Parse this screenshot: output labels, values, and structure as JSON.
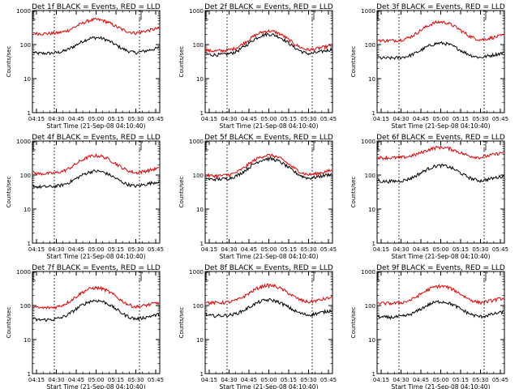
{
  "chart_data": [
    {
      "type": "line",
      "title": "Det 1f BLACK = Events, RED = LLD",
      "xlabel": "Start Time (21-Sep-08 04:10:40)",
      "ylabel": "Counts/sec",
      "xticks": [
        "04:15",
        "04:30",
        "04:45",
        "05:00",
        "05:15",
        "05:30",
        "05:45"
      ],
      "yticks": [
        "1",
        "10",
        "100",
        "1000"
      ],
      "ylim": [
        1,
        1000
      ],
      "yscale": "log",
      "series": [
        {
          "color": "#000000",
          "base": 55,
          "peak": 160
        },
        {
          "color": "#e00000",
          "base": 210,
          "peak": 540
        }
      ]
    },
    {
      "type": "line",
      "title": "Det 2f BLACK = Events, RED = LLD",
      "xlabel": "Start Time (21-Sep-08 04:10:40)",
      "ylabel": "Counts/sec",
      "xticks": [
        "04:15",
        "04:30",
        "04:45",
        "05:00",
        "05:15",
        "05:30",
        "05:45"
      ],
      "yticks": [
        "1",
        "10",
        "100",
        "1000"
      ],
      "ylim": [
        1,
        1000
      ],
      "yscale": "log",
      "series": [
        {
          "color": "#000000",
          "base": 50,
          "peak": 200
        },
        {
          "color": "#e00000",
          "base": 65,
          "peak": 250
        }
      ]
    },
    {
      "type": "line",
      "title": "Det 3f BLACK = Events, RED = LLD",
      "xlabel": "Start Time (21-Sep-08 04:10:40)",
      "ylabel": "Counts/sec",
      "xticks": [
        "04:15",
        "04:30",
        "04:45",
        "05:00",
        "05:15",
        "05:30",
        "05:45"
      ],
      "yticks": [
        "1",
        "10",
        "100",
        "1000"
      ],
      "ylim": [
        1,
        1000
      ],
      "yscale": "log",
      "series": [
        {
          "color": "#000000",
          "base": 40,
          "peak": 110
        },
        {
          "color": "#e00000",
          "base": 130,
          "peak": 460
        }
      ]
    },
    {
      "type": "line",
      "title": "Det 4f BLACK = Events, RED = LLD",
      "xlabel": "Start Time (21-Sep-08 04:10:40)",
      "ylabel": "Counts/sec",
      "xticks": [
        "04:15",
        "04:30",
        "04:45",
        "05:00",
        "05:15",
        "05:30",
        "05:45"
      ],
      "yticks": [
        "1",
        "10",
        "100",
        "1000"
      ],
      "ylim": [
        1,
        1000
      ],
      "yscale": "log",
      "series": [
        {
          "color": "#000000",
          "base": 45,
          "peak": 130
        },
        {
          "color": "#e00000",
          "base": 110,
          "peak": 370
        }
      ]
    },
    {
      "type": "line",
      "title": "Det 5f BLACK = Events, RED = LLD",
      "xlabel": "Start Time (21-Sep-08 04:10:40)",
      "ylabel": "Counts/sec",
      "xticks": [
        "04:15",
        "04:30",
        "04:45",
        "05:00",
        "05:15",
        "05:30",
        "05:45"
      ],
      "yticks": [
        "1",
        "10",
        "100",
        "1000"
      ],
      "ylim": [
        1,
        1000
      ],
      "yscale": "log",
      "series": [
        {
          "color": "#000000",
          "base": 75,
          "peak": 300
        },
        {
          "color": "#e00000",
          "base": 95,
          "peak": 380
        }
      ]
    },
    {
      "type": "line",
      "title": "Det 6f BLACK = Events, RED = LLD",
      "xlabel": "Start Time (21-Sep-08 04:10:40)",
      "ylabel": "Counts/sec",
      "xticks": [
        "04:15",
        "04:30",
        "04:45",
        "05:00",
        "05:15",
        "05:30",
        "05:45"
      ],
      "yticks": [
        "1",
        "10",
        "100",
        "1000"
      ],
      "ylim": [
        1,
        1000
      ],
      "yscale": "log",
      "series": [
        {
          "color": "#000000",
          "base": 65,
          "peak": 190
        },
        {
          "color": "#e00000",
          "base": 320,
          "peak": 650
        }
      ]
    },
    {
      "type": "line",
      "title": "Det 7f BLACK = Events, RED = LLD",
      "xlabel": "Start Time (21-Sep-08 04:10:40)",
      "ylabel": "Counts/sec",
      "xticks": [
        "04:15",
        "04:30",
        "04:45",
        "05:00",
        "05:15",
        "05:30",
        "05:45"
      ],
      "yticks": [
        "1",
        "10",
        "100",
        "1000"
      ],
      "ylim": [
        1,
        1000
      ],
      "yscale": "log",
      "series": [
        {
          "color": "#000000",
          "base": 38,
          "peak": 140
        },
        {
          "color": "#e00000",
          "base": 85,
          "peak": 330
        }
      ]
    },
    {
      "type": "line",
      "title": "Det 8f BLACK = Events, RED = LLD",
      "xlabel": "Start Time (21-Sep-08 04:10:40)",
      "ylabel": "Counts/sec",
      "xticks": [
        "04:15",
        "04:30",
        "04:45",
        "05:00",
        "05:15",
        "05:30",
        "05:45"
      ],
      "yticks": [
        "1",
        "10",
        "100",
        "1000"
      ],
      "ylim": [
        1,
        1000
      ],
      "yscale": "log",
      "series": [
        {
          "color": "#000000",
          "base": 50,
          "peak": 145
        },
        {
          "color": "#e00000",
          "base": 120,
          "peak": 390
        }
      ]
    },
    {
      "type": "line",
      "title": "Det 9f BLACK = Events, RED = LLD",
      "xlabel": "Start Time (21-Sep-08 04:10:40)",
      "ylabel": "Counts/sec",
      "xticks": [
        "04:15",
        "04:30",
        "04:45",
        "05:00",
        "05:15",
        "05:30",
        "05:45"
      ],
      "yticks": [
        "1",
        "10",
        "100",
        "1000"
      ],
      "ylim": [
        1,
        1000
      ],
      "yscale": "log",
      "series": [
        {
          "color": "#000000",
          "base": 45,
          "peak": 130
        },
        {
          "color": "#e00000",
          "base": 115,
          "peak": 370
        }
      ]
    }
  ]
}
